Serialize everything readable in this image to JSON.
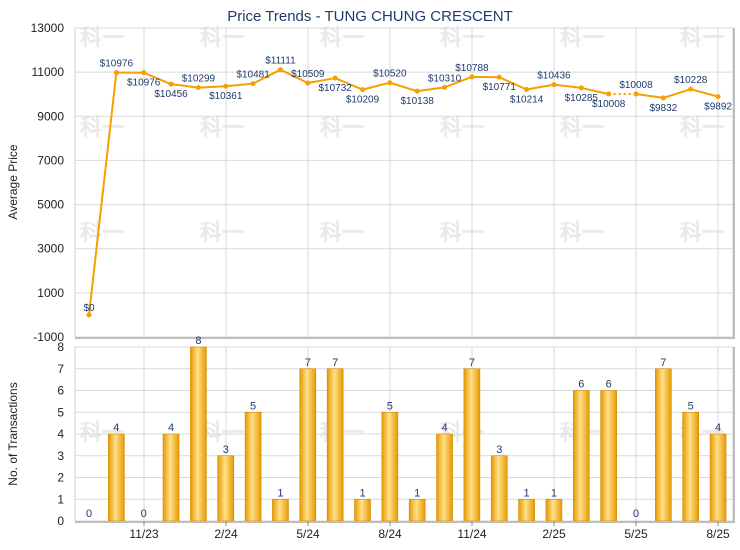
{
  "chart_data": {
    "type": "line+bar",
    "title": "Price Trends - TUNG CHUNG CRESCENT",
    "watermark": "科一",
    "colors": {
      "line": "#f5a000",
      "bar": "#f5b000",
      "grid": "#d9d9d9",
      "title": "#1f3a6e",
      "label": "#1f3a6e"
    },
    "x_ticks": [
      "11/23",
      "2/24",
      "5/24",
      "8/24",
      "11/24",
      "2/25",
      "5/25",
      "8/25"
    ],
    "price": {
      "ylabel": "Average Price",
      "ylim": [
        -1000,
        13000
      ],
      "yticks": [
        -1000,
        1000,
        3000,
        5000,
        7000,
        9000,
        11000,
        13000
      ],
      "values": [
        0,
        10976,
        10976,
        10456,
        10299,
        10361,
        10481,
        11111,
        10509,
        10732,
        10209,
        10520,
        10138,
        10310,
        10788,
        10771,
        10214,
        10436,
        10285,
        10008,
        10008,
        9832,
        10228,
        9892
      ],
      "labels": [
        "$0",
        "$10976",
        "$10976",
        "$10456",
        "$10299",
        "$10361",
        "$10481",
        "$11111",
        "$10509",
        "$10732",
        "$10209",
        "$10520",
        "$10138",
        "$10310",
        "$10788",
        "$10771",
        "$10214",
        "$10436",
        "$10285",
        "$10008",
        "$10008",
        "$9832",
        "$10228",
        "$9892"
      ],
      "dotted_segment": [
        19,
        20
      ]
    },
    "transactions": {
      "ylabel": "No. of Transactions",
      "ylim": [
        0,
        8
      ],
      "yticks": [
        0,
        1,
        2,
        3,
        4,
        5,
        6,
        7,
        8
      ],
      "values": [
        0,
        4,
        0,
        4,
        8,
        3,
        5,
        1,
        7,
        7,
        1,
        5,
        1,
        4,
        7,
        3,
        1,
        1,
        6,
        6,
        0,
        7,
        5,
        4
      ],
      "labels": [
        "0",
        "4",
        "0",
        "4",
        "8",
        "3",
        "5",
        "1",
        "7",
        "7",
        "1",
        "5",
        "1",
        "4",
        "7",
        "3",
        "1",
        "1",
        "6",
        "6",
        "0",
        "7",
        "5",
        "4"
      ]
    }
  }
}
